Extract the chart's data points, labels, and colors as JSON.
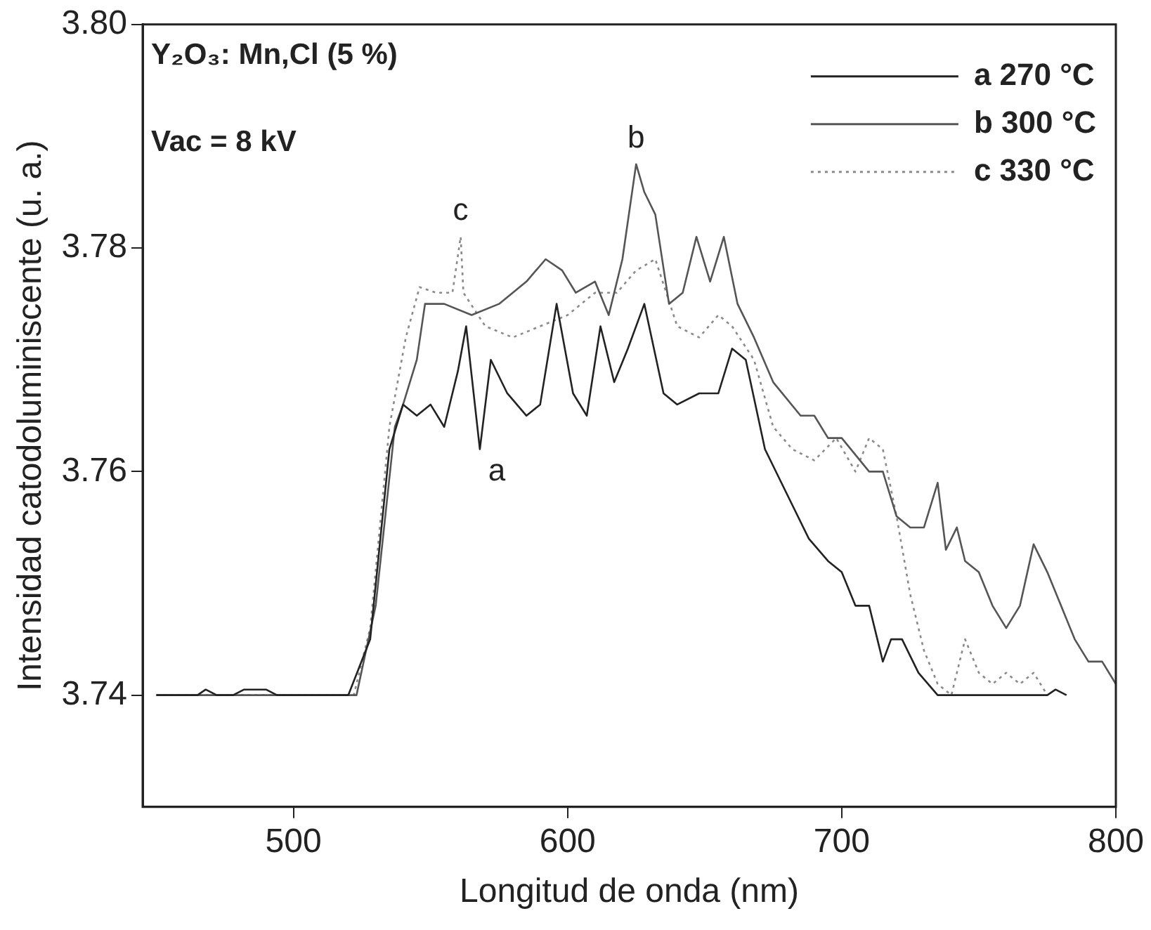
{
  "chart_data": {
    "type": "line",
    "xlabel": "Longitud de onda (nm)",
    "ylabel": "Intensidad catodoluminiscente (u. a.)",
    "xlim": [
      445,
      800
    ],
    "xticks": [
      500,
      600,
      700,
      800
    ],
    "ylim": [
      3.73,
      3.8
    ],
    "yticks": [
      3.74,
      3.76,
      3.78,
      {
        "value": 3.8,
        "label": "3.80"
      }
    ],
    "grid": false,
    "legend": "top right",
    "marker": "none",
    "annotations": [
      "Y₂O₃: Mn,Cl (5 %)",
      "Vac = 8 kV",
      {
        "text": "a",
        "x": 568,
        "y": 3.762
      },
      {
        "text": "b",
        "x": 625,
        "y": 3.7875
      },
      {
        "text": "c",
        "x": 561,
        "y": 3.781
      }
    ],
    "series": [
      {
        "name": "a 270 °C",
        "color": "#222222",
        "line_style": "solid",
        "x": [
          450,
          465,
          468,
          472,
          478,
          482,
          490,
          494,
          520,
          528,
          535,
          540,
          545,
          550,
          555,
          560,
          563,
          568,
          572,
          578,
          585,
          590,
          596,
          602,
          607,
          612,
          617,
          622,
          628,
          635,
          640,
          648,
          655,
          660,
          665,
          672,
          680,
          688,
          695,
          700,
          705,
          710,
          715,
          718,
          722,
          728,
          735,
          745,
          760,
          775,
          778,
          782
        ],
        "values": [
          3.74,
          3.74,
          3.7405,
          3.74,
          3.74,
          3.7405,
          3.7405,
          3.74,
          3.74,
          3.745,
          3.762,
          3.766,
          3.765,
          3.766,
          3.764,
          3.769,
          3.773,
          3.762,
          3.77,
          3.767,
          3.765,
          3.766,
          3.775,
          3.767,
          3.765,
          3.773,
          3.768,
          3.771,
          3.775,
          3.767,
          3.766,
          3.767,
          3.767,
          3.771,
          3.77,
          3.762,
          3.758,
          3.754,
          3.752,
          3.751,
          3.748,
          3.748,
          3.743,
          3.745,
          3.745,
          3.742,
          3.74,
          3.74,
          3.74,
          3.74,
          3.7405,
          3.74
        ]
      },
      {
        "name": "b 300 °C",
        "color": "#555555",
        "line_style": "solid",
        "x": [
          450,
          523,
          530,
          537,
          540,
          545,
          548,
          555,
          565,
          575,
          585,
          592,
          598,
          603,
          610,
          615,
          620,
          625,
          628,
          632,
          637,
          642,
          647,
          652,
          657,
          662,
          668,
          675,
          685,
          690,
          695,
          700,
          710,
          715,
          720,
          725,
          730,
          735,
          738,
          742,
          745,
          750,
          755,
          760,
          765,
          770,
          775,
          780,
          785,
          790,
          795,
          800
        ],
        "values": [
          3.74,
          3.74,
          3.748,
          3.764,
          3.766,
          3.77,
          3.775,
          3.775,
          3.774,
          3.775,
          3.777,
          3.779,
          3.778,
          3.776,
          3.777,
          3.774,
          3.779,
          3.7875,
          3.785,
          3.783,
          3.775,
          3.776,
          3.781,
          3.777,
          3.781,
          3.775,
          3.772,
          3.768,
          3.765,
          3.765,
          3.763,
          3.763,
          3.76,
          3.76,
          3.756,
          3.755,
          3.755,
          3.759,
          3.753,
          3.755,
          3.752,
          3.751,
          3.748,
          3.746,
          3.748,
          3.7535,
          3.751,
          3.748,
          3.745,
          3.743,
          3.743,
          3.741
        ]
      },
      {
        "name": "c 330 °C",
        "color": "#8a8a8a",
        "line_style": "dotted",
        "x": [
          450,
          522,
          528,
          535,
          541,
          546,
          552,
          558,
          561,
          562,
          570,
          580,
          590,
          600,
          610,
          618,
          625,
          632,
          640,
          648,
          655,
          660,
          668,
          675,
          682,
          690,
          698,
          705,
          710,
          715,
          720,
          725,
          730,
          735,
          740,
          745,
          750,
          755,
          760,
          765,
          770,
          775
        ],
        "values": [
          3.74,
          3.74,
          3.746,
          3.764,
          3.772,
          3.7765,
          3.776,
          3.776,
          3.781,
          3.776,
          3.773,
          3.772,
          3.773,
          3.774,
          3.776,
          3.776,
          3.778,
          3.779,
          3.773,
          3.772,
          3.774,
          3.773,
          3.77,
          3.764,
          3.762,
          3.761,
          3.763,
          3.76,
          3.763,
          3.762,
          3.756,
          3.749,
          3.744,
          3.741,
          3.74,
          3.745,
          3.742,
          3.741,
          3.742,
          3.741,
          3.742,
          3.74
        ]
      }
    ]
  }
}
